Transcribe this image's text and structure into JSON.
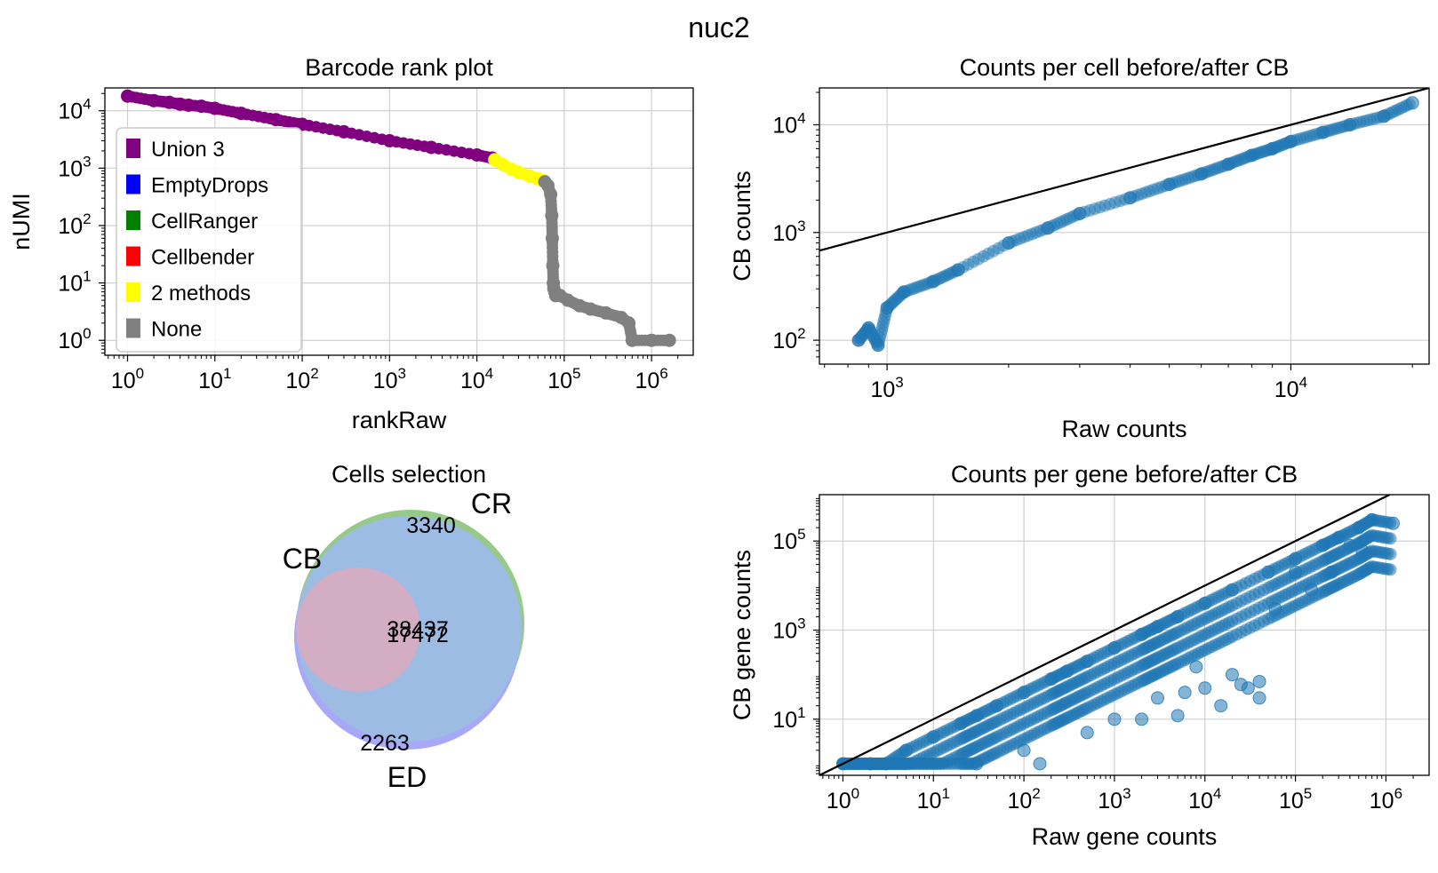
{
  "figure": {
    "suptitle": "nuc2"
  },
  "chart_data": [
    {
      "id": "barcode-rank",
      "type": "scatter",
      "title": "Barcode rank plot",
      "xlabel": "rankRaw",
      "ylabel": "nUMI",
      "xscale": "log",
      "yscale": "log",
      "xlim": [
        0.55,
        3000000
      ],
      "ylim": [
        0.55,
        25000
      ],
      "xticks": [
        {
          "base": "10",
          "exp": "0",
          "value": 1
        },
        {
          "base": "10",
          "exp": "1",
          "value": 10
        },
        {
          "base": "10",
          "exp": "2",
          "value": 100
        },
        {
          "base": "10",
          "exp": "3",
          "value": 1000
        },
        {
          "base": "10",
          "exp": "4",
          "value": 10000
        },
        {
          "base": "10",
          "exp": "5",
          "value": 100000
        },
        {
          "base": "10",
          "exp": "6",
          "value": 1000000
        }
      ],
      "yticks": [
        {
          "base": "10",
          "exp": "0",
          "value": 1
        },
        {
          "base": "10",
          "exp": "1",
          "value": 10
        },
        {
          "base": "10",
          "exp": "2",
          "value": 100
        },
        {
          "base": "10",
          "exp": "3",
          "value": 1000
        },
        {
          "base": "10",
          "exp": "4",
          "value": 10000
        }
      ],
      "grid": true,
      "legend_position": "left",
      "legend": [
        {
          "label": "Union 3",
          "color": "#800080"
        },
        {
          "label": "EmptyDrops",
          "color": "#0000ff"
        },
        {
          "label": "CellRanger",
          "color": "#008000"
        },
        {
          "label": "Cellbender",
          "color": "#ff0000"
        },
        {
          "label": "2 methods",
          "color": "#ffff00"
        },
        {
          "label": "None",
          "color": "#808080"
        }
      ],
      "series": [
        {
          "name": "Union 3",
          "color": "#800080",
          "x": [
            1,
            2,
            3,
            4,
            5,
            7,
            10,
            20,
            50,
            100,
            300,
            1000,
            3000,
            10000,
            15000
          ],
          "y": [
            18000,
            15000,
            14000,
            13000,
            12500,
            12000,
            11000,
            9000,
            7000,
            5800,
            4300,
            3000,
            2300,
            1700,
            1500
          ]
        },
        {
          "name": "2 methods",
          "color": "#ffff00",
          "x": [
            16000,
            20000,
            25000,
            30000,
            40000,
            50000,
            58000
          ],
          "y": [
            1400,
            1150,
            950,
            850,
            730,
            650,
            600
          ]
        },
        {
          "name": "None",
          "color": "#808080",
          "x": [
            60000,
            65000,
            70000,
            72000,
            73000,
            74000,
            75000,
            76000,
            78000,
            80000,
            90000,
            110000,
            150000,
            200000,
            300000,
            450000,
            550000,
            600000,
            1000000,
            1600000
          ],
          "y": [
            580,
            500,
            350,
            150,
            60,
            20,
            10,
            8,
            7,
            6,
            6,
            5,
            4,
            3.5,
            3,
            2.5,
            2,
            1,
            1,
            1
          ]
        }
      ]
    },
    {
      "id": "counts-per-cell",
      "type": "scatter",
      "title": "Counts per cell before/after CB",
      "xlabel": "Raw counts",
      "ylabel": "CB counts",
      "xscale": "log",
      "yscale": "log",
      "xlim": [
        680,
        22000
      ],
      "ylim": [
        60,
        22000
      ],
      "xticks": [
        {
          "base": "10",
          "exp": "3",
          "value": 1000
        },
        {
          "base": "10",
          "exp": "4",
          "value": 10000
        }
      ],
      "yticks": [
        {
          "base": "10",
          "exp": "2",
          "value": 100
        },
        {
          "base": "10",
          "exp": "3",
          "value": 1000
        },
        {
          "base": "10",
          "exp": "4",
          "value": 10000
        }
      ],
      "grid": true,
      "reference_line": "y = x",
      "series": [
        {
          "name": "",
          "color": "#1f77b4",
          "x": [
            850,
            900,
            950,
            1000,
            1100,
            1300,
            1500,
            2000,
            2500,
            3000,
            4000,
            5000,
            6000,
            7000,
            8000,
            9000,
            10000,
            12000,
            14000,
            17000,
            20000
          ],
          "y": [
            100,
            130,
            90,
            200,
            280,
            350,
            450,
            800,
            1100,
            1500,
            2100,
            2800,
            3500,
            4300,
            5200,
            6000,
            7000,
            8500,
            10000,
            12000,
            16000
          ]
        }
      ]
    },
    {
      "id": "cells-selection",
      "type": "venn",
      "title": "Cells selection",
      "sets": [
        {
          "label": "CR",
          "color": "#8cc47c"
        },
        {
          "label": "ED",
          "color": "#9f9ff7"
        },
        {
          "label": "CB",
          "color": "#e4a8b8"
        }
      ],
      "counts": [
        {
          "region": "CR only",
          "value": "3340"
        },
        {
          "region": "ED only",
          "value": "2263"
        },
        {
          "region": "CR & ED",
          "value": "38437"
        },
        {
          "region": "All",
          "value": "17472"
        }
      ]
    },
    {
      "id": "counts-per-gene",
      "type": "scatter",
      "title": "Counts per gene before/after CB",
      "xlabel": "Raw gene counts",
      "ylabel": "CB gene counts",
      "xscale": "log",
      "yscale": "log",
      "xlim": [
        0.55,
        3000000
      ],
      "ylim": [
        0.55,
        1100000
      ],
      "xticks": [
        {
          "base": "10",
          "exp": "0",
          "value": 1
        },
        {
          "base": "10",
          "exp": "1",
          "value": 10
        },
        {
          "base": "10",
          "exp": "2",
          "value": 100
        },
        {
          "base": "10",
          "exp": "3",
          "value": 1000
        },
        {
          "base": "10",
          "exp": "4",
          "value": 10000
        },
        {
          "base": "10",
          "exp": "5",
          "value": 100000
        },
        {
          "base": "10",
          "exp": "6",
          "value": 1000000
        }
      ],
      "yticks": [
        {
          "base": "10",
          "exp": "1",
          "value": 10
        },
        {
          "base": "10",
          "exp": "3",
          "value": 1000
        },
        {
          "base": "10",
          "exp": "5",
          "value": 100000
        }
      ],
      "grid": true,
      "reference_line": "y = x",
      "series": [
        {
          "name": "",
          "color": "#1f77b4",
          "x": [
            1,
            2,
            3,
            5,
            10,
            20,
            30,
            50,
            100,
            200,
            300,
            500,
            1000,
            2000,
            3000,
            5000,
            10000,
            20000,
            50000,
            100000,
            200000,
            300000,
            500000,
            700000,
            1200000,
            30,
            100,
            150,
            500,
            1000,
            3000,
            6000,
            10000,
            25000,
            40000,
            60000,
            100000,
            150000,
            250000,
            400000,
            550000,
            20000,
            30000,
            40000,
            15000,
            8000,
            5000,
            2000
          ],
          "y": [
            1,
            1,
            1,
            2,
            4,
            8,
            12,
            20,
            40,
            80,
            120,
            200,
            400,
            800,
            1200,
            2000,
            4000,
            8000,
            20000,
            40000,
            80000,
            120000,
            200000,
            300000,
            250000,
            1,
            2,
            1,
            5,
            10,
            30,
            40,
            50,
            60,
            70,
            3000,
            20000,
            8000,
            20000,
            80000,
            60000,
            100,
            50,
            30,
            20,
            150,
            12,
            10
          ]
        }
      ]
    }
  ]
}
